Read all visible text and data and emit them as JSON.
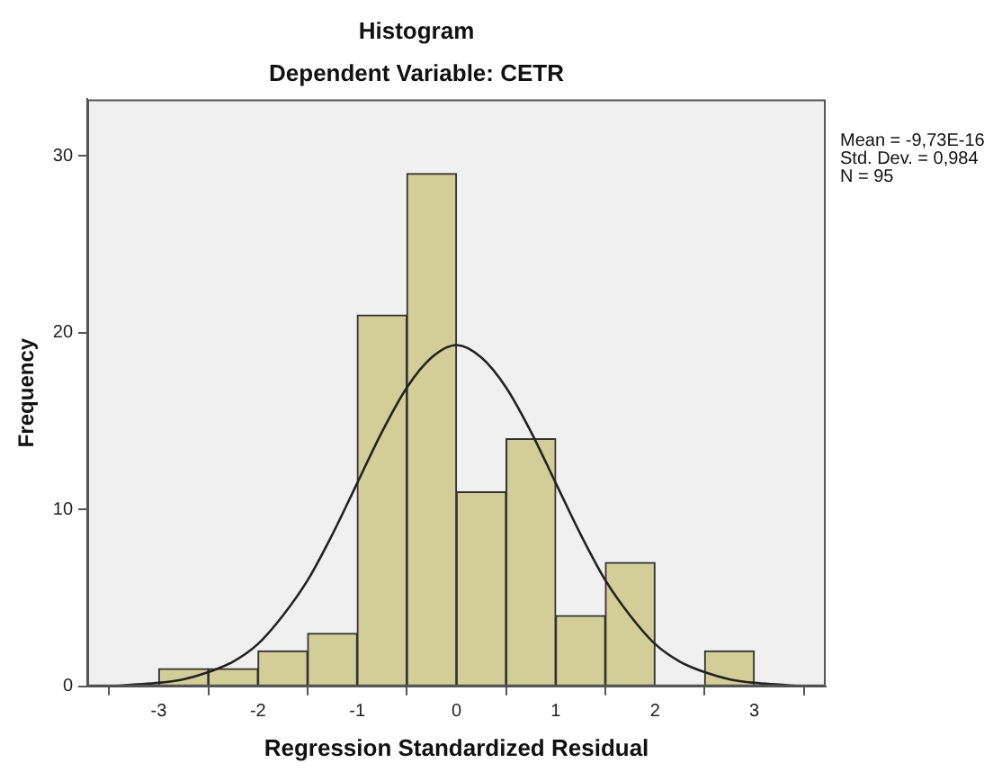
{
  "chart_data": {
    "type": "histogram",
    "title": "Histogram",
    "subtitle": "Dependent Variable: CETR",
    "xlabel": "Regression Standardized Residual",
    "ylabel": "Frequency",
    "bins": [
      -3,
      -2.5,
      -2,
      -1.5,
      -1,
      -0.5,
      0,
      0.5,
      1,
      1.5,
      2,
      2.5,
      3
    ],
    "values": [
      1,
      1,
      2,
      3,
      21,
      29,
      11,
      14,
      4,
      7,
      0,
      2
    ],
    "color": "#d3ce97",
    "series": [
      {
        "type": "line",
        "color": "#222222",
        "x": [
          -3.7,
          -3.5,
          -3.25,
          -3,
          -2.75,
          -2.5,
          -2.25,
          -2,
          -1.75,
          -1.5,
          -1.25,
          -1,
          -0.75,
          -0.5,
          -0.25,
          0,
          0.25,
          0.5,
          0.75,
          1,
          1.25,
          1.5,
          1.75,
          2,
          2.25,
          2.5,
          2.75,
          3,
          3.25,
          3.5,
          3.7
        ],
        "values": [
          0,
          0,
          0.1,
          0.2,
          0.4,
          0.8,
          1.4,
          2.4,
          4,
          6,
          8.6,
          11.5,
          14.4,
          16.9,
          18.6,
          19.3,
          18.6,
          16.9,
          14.4,
          11.5,
          8.6,
          6,
          4,
          2.4,
          1.4,
          0.8,
          0.4,
          0.2,
          0.1,
          0,
          0
        ]
      }
    ],
    "xlim": [
      -3.72,
      3.72
    ],
    "xticks": [
      -3,
      -2,
      -1,
      0,
      1,
      2,
      3
    ],
    "ylim": [
      0,
      33.2
    ],
    "yticks": [
      0,
      10,
      20,
      30
    ],
    "grid": false,
    "legend": false,
    "marker": "none",
    "annotations": [
      "Mean = -9,73E-16",
      "Std. Dev. = 0,984",
      "N = 95"
    ]
  }
}
